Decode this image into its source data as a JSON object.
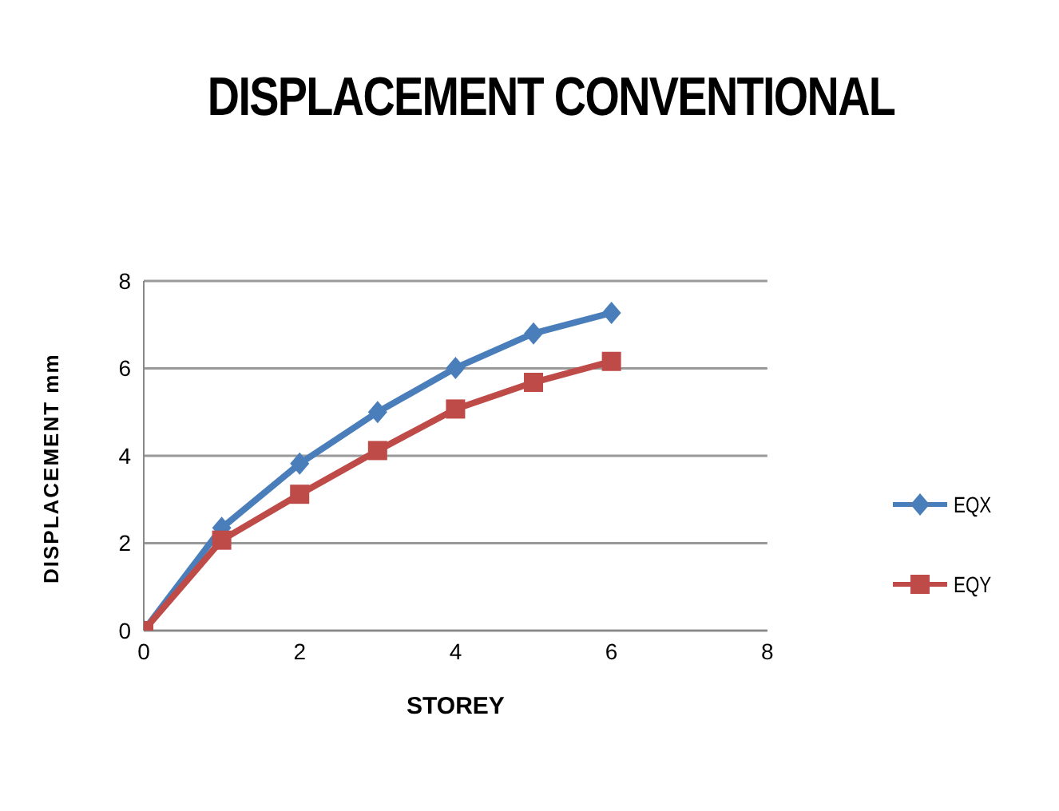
{
  "chart_data": {
    "type": "line",
    "title": "DISPLACEMENT CONVENTIONAL",
    "xlabel": "STOREY",
    "ylabel": "DISPLACEMENT mm",
    "x": [
      0,
      1,
      2,
      3,
      4,
      5,
      6
    ],
    "series": [
      {
        "name": "EQX",
        "color": "#4a7ebb",
        "marker": "diamond",
        "values": [
          0,
          2.35,
          3.82,
          5.0,
          6.01,
          6.8,
          7.27
        ]
      },
      {
        "name": "EQY",
        "color": "#be4b48",
        "marker": "square",
        "values": [
          0,
          2.07,
          3.12,
          4.12,
          5.07,
          5.68,
          6.16
        ]
      }
    ],
    "xlim": [
      0,
      8
    ],
    "xticks": [
      0,
      2,
      4,
      6,
      8
    ],
    "ylim": [
      0,
      8
    ],
    "yticks": [
      0,
      2,
      4,
      6,
      8
    ],
    "grid": "y",
    "legend": "right",
    "line_style": "solid"
  }
}
